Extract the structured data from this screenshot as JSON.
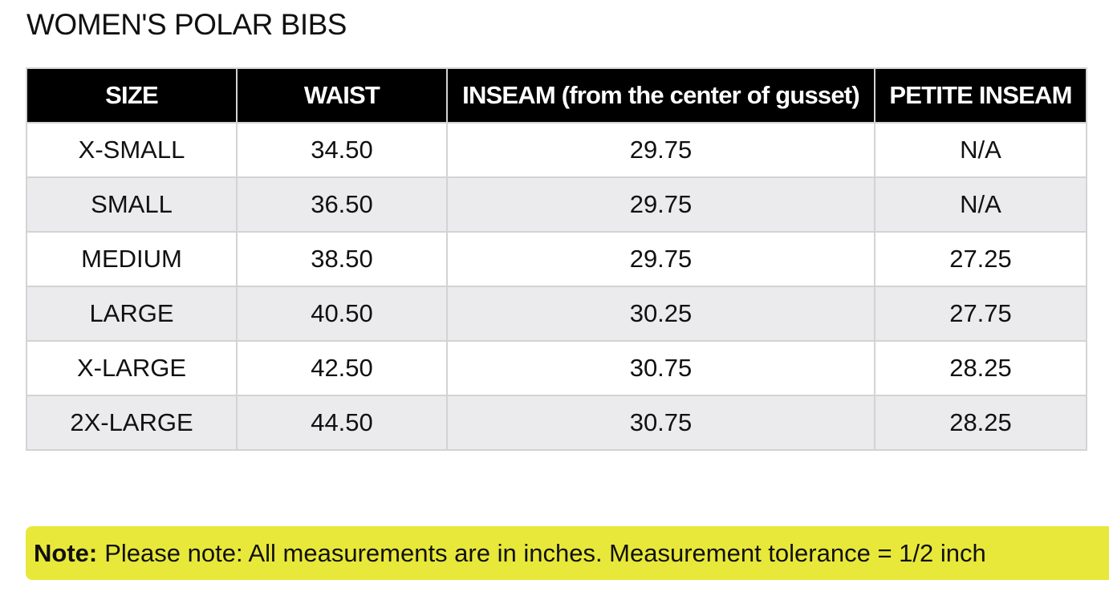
{
  "title": "WOMEN'S POLAR BIBS",
  "table": {
    "headers": [
      "SIZE",
      "WAIST",
      "INSEAM (from the center of gusset)",
      "PETITE INSEAM"
    ],
    "rows": [
      [
        "X-SMALL",
        "34.50",
        "29.75",
        "N/A"
      ],
      [
        "SMALL",
        "36.50",
        "29.75",
        "N/A"
      ],
      [
        "MEDIUM",
        "38.50",
        "29.75",
        "27.25"
      ],
      [
        "LARGE",
        "40.50",
        "30.25",
        "27.75"
      ],
      [
        "X-LARGE",
        "42.50",
        "30.75",
        "28.25"
      ],
      [
        "2X-LARGE",
        "44.50",
        "30.75",
        "28.25"
      ]
    ]
  },
  "note": {
    "label": "Note:",
    "text": "Please note: All measurements are in inches. Measurement tolerance = 1/2 inch"
  },
  "colors": {
    "header_bg": "#000000",
    "header_text": "#ffffff",
    "row_alt_bg": "#ebeaed",
    "note_bg": "#e8e83a",
    "border": "#d3d3d3"
  }
}
